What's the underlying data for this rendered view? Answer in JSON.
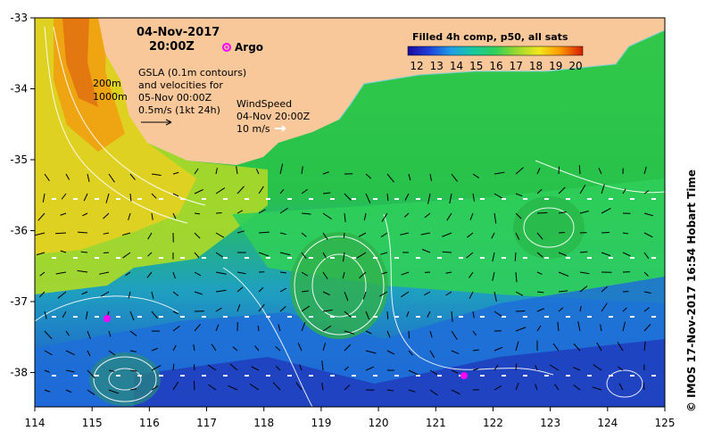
{
  "map": {
    "date": "04-Nov-2017",
    "time": "20:00Z",
    "argo_label": "Argo",
    "contour_labels": [
      "200m",
      "1000m"
    ],
    "gsla_lines": [
      "GSLA (0.1m contours)",
      "and velocities for",
      "05-Nov 00:00Z",
      "0.5m/s (1kt 24h)"
    ],
    "wind_lines": [
      "WindSpeed",
      "04-Nov 20:00Z",
      "10 m/s"
    ],
    "colorbar": {
      "title": "Filled 4h comp, p50, all sats",
      "ticks": [
        "12",
        "13",
        "14",
        "15",
        "16",
        "17",
        "18",
        "19",
        "20"
      ]
    },
    "x_ticks": [
      "114",
      "115",
      "116",
      "117",
      "118",
      "119",
      "120",
      "121",
      "122",
      "123",
      "124",
      "125"
    ],
    "y_ticks": [
      "-33",
      "-34",
      "-35",
      "-36",
      "-37",
      "-38"
    ],
    "credit": "©  IMOS 17-Nov-2017 16:54 Hobart Time",
    "colors": {
      "land": "#f8c79a",
      "cold": "#1f3fbf",
      "warm": "#ff8a00",
      "argo": "#ff00ff"
    }
  }
}
